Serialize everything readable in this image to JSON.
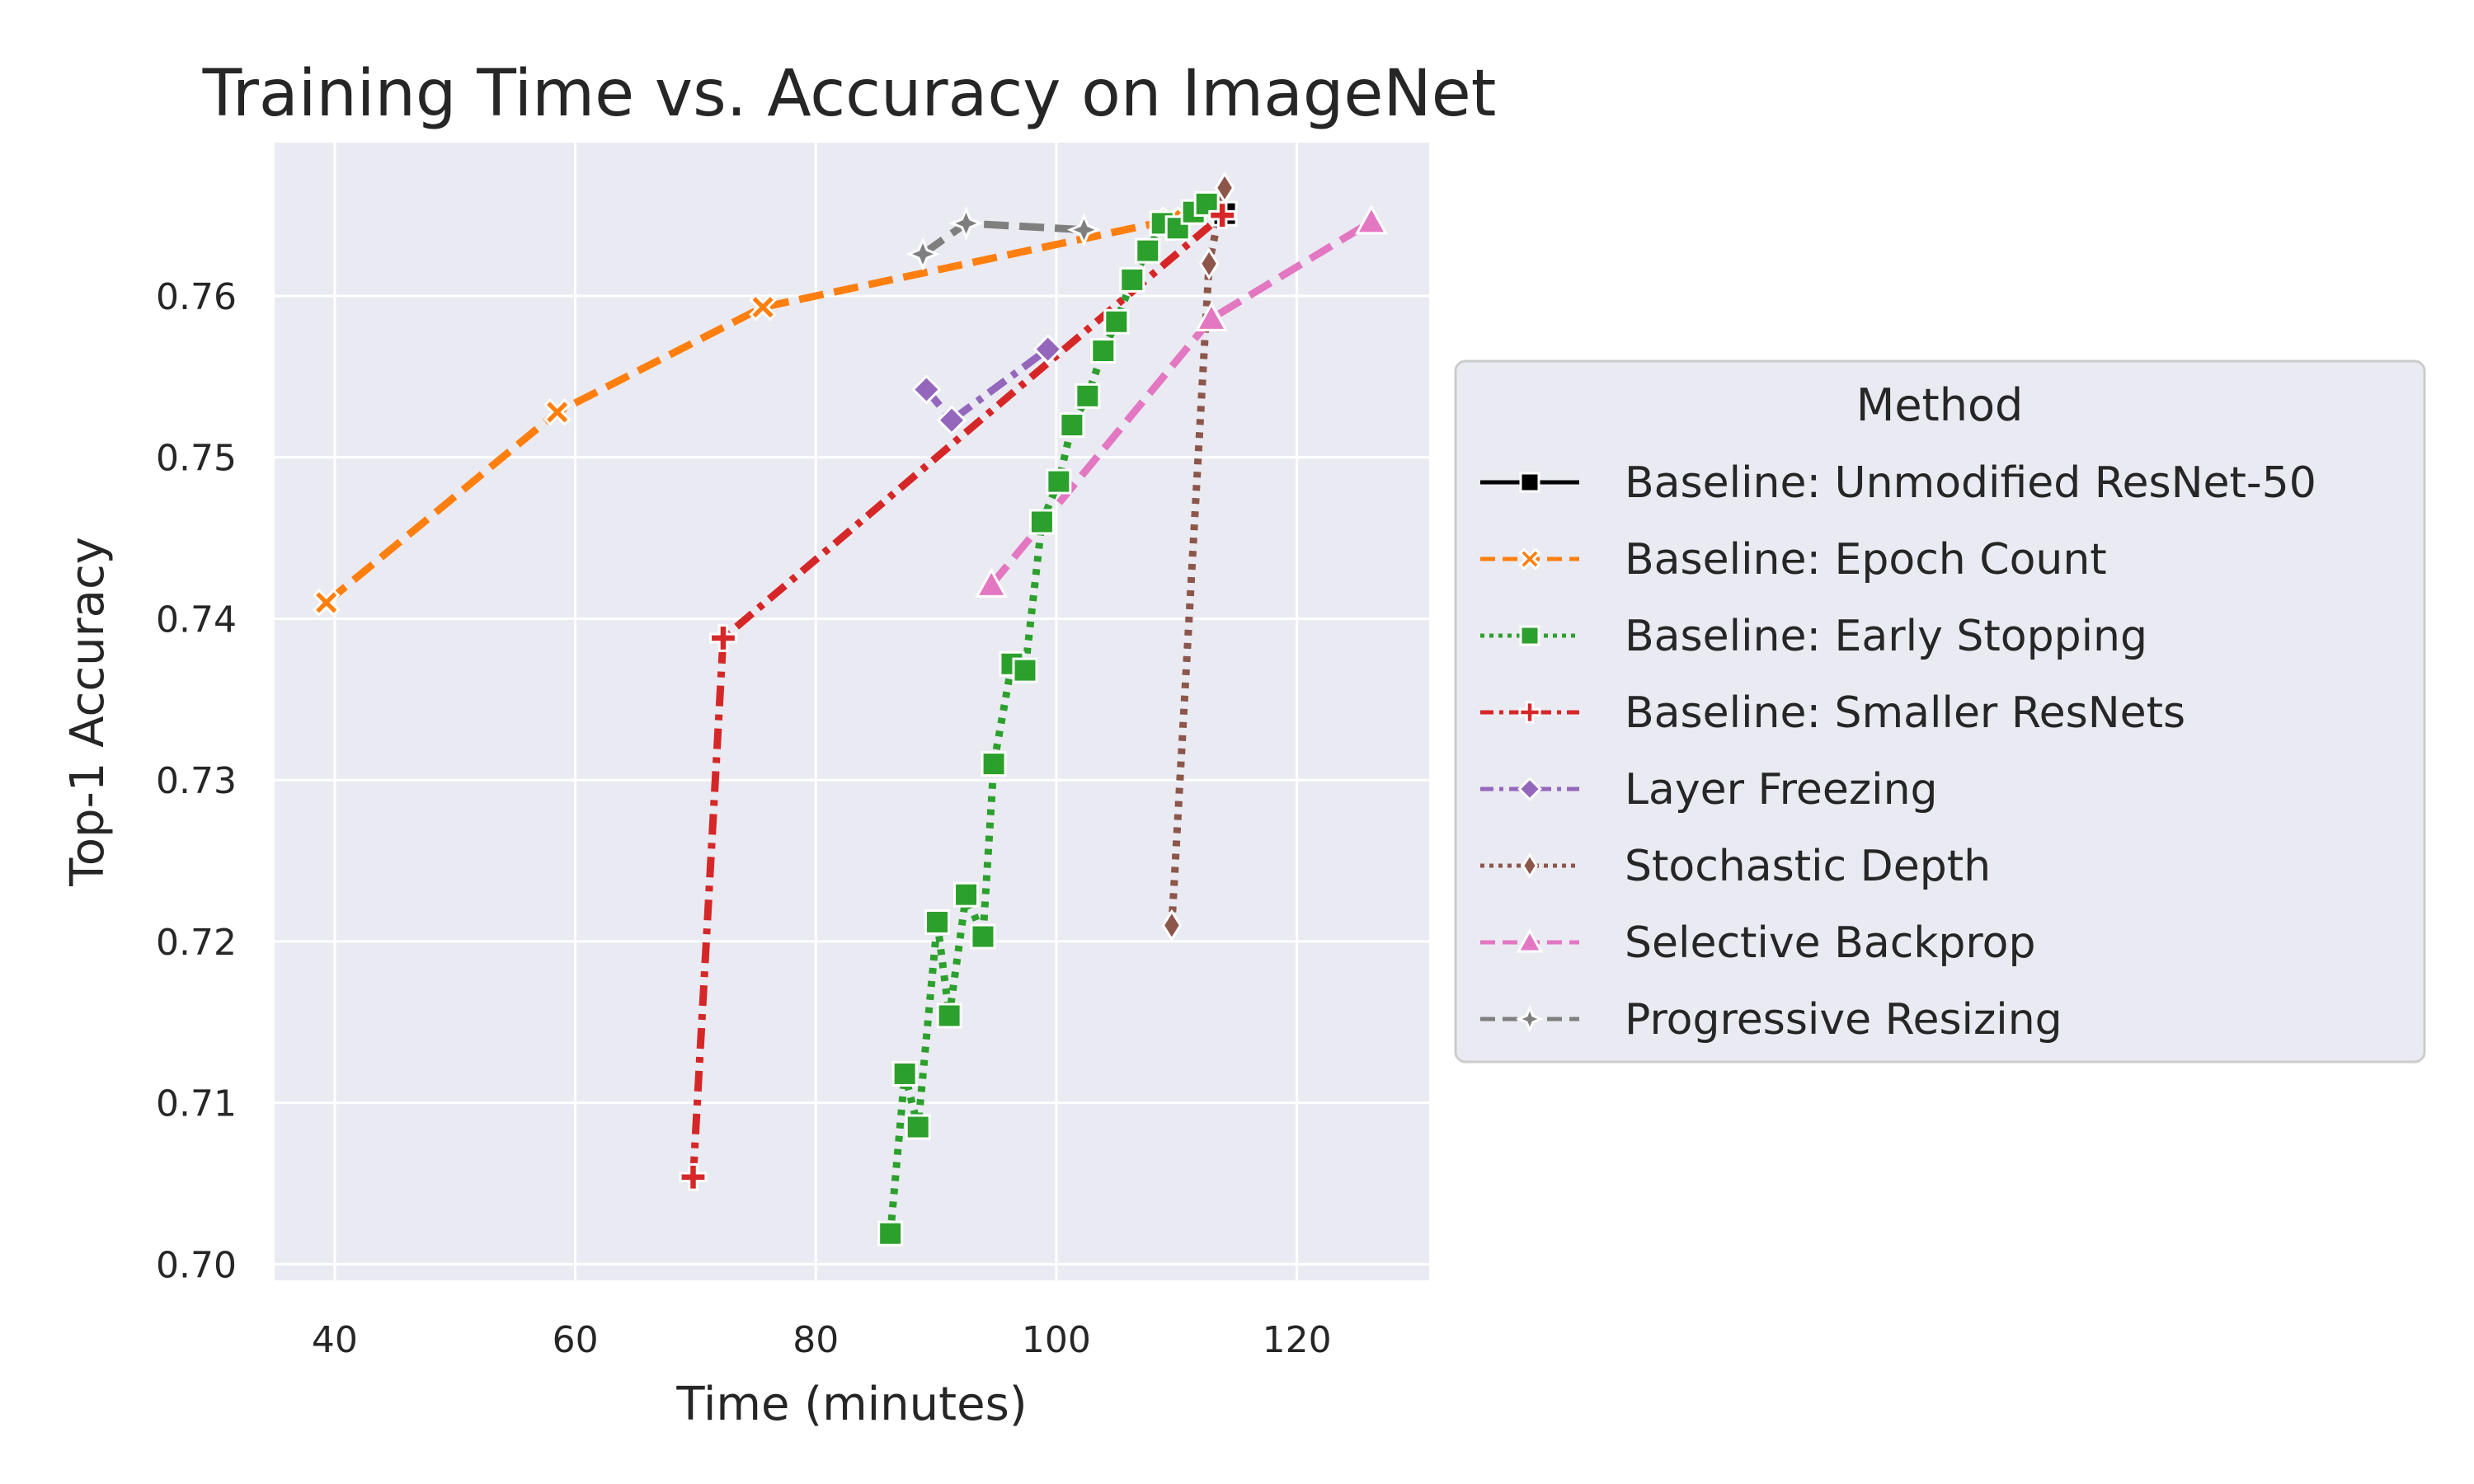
{
  "chart_data": {
    "type": "line",
    "title": "Training Time vs. Accuracy on ImageNet",
    "xlabel": "Time (minutes)",
    "ylabel": "Top-1 Accuracy",
    "xlim": [
      35,
      131
    ],
    "ylim": [
      0.699,
      0.7695
    ],
    "xticks": [
      40,
      60,
      80,
      100,
      120
    ],
    "yticks": [
      0.7,
      0.71,
      0.72,
      0.73,
      0.74,
      0.75,
      0.76
    ],
    "grid": true,
    "background": "#eaeaf2",
    "legend": {
      "title": "Method",
      "placement": "center-right-outside"
    },
    "series": [
      {
        "name": "Baseline: Unmodified ResNet-50",
        "color": "#000000",
        "dash": "solid",
        "marker": "square",
        "points": [
          [
            114.0,
            0.7651
          ]
        ]
      },
      {
        "name": "Baseline: Epoch Count",
        "color": "#ff7f0e",
        "dash": "dashed",
        "marker": "x",
        "points": [
          [
            39.3,
            0.741
          ],
          [
            58.5,
            0.7528
          ],
          [
            75.6,
            0.7593
          ],
          [
            109.5,
            0.7647
          ]
        ]
      },
      {
        "name": "Baseline: Early Stopping",
        "color": "#2ca02c",
        "dash": "dotted",
        "marker": "square",
        "points": [
          [
            86.2,
            0.7019
          ],
          [
            87.4,
            0.7118
          ],
          [
            88.5,
            0.7085
          ],
          [
            90.1,
            0.7212
          ],
          [
            91.1,
            0.7154
          ],
          [
            92.5,
            0.7229
          ],
          [
            93.9,
            0.7203
          ],
          [
            94.8,
            0.731
          ],
          [
            96.3,
            0.7372
          ],
          [
            97.4,
            0.7368
          ],
          [
            98.8,
            0.746
          ],
          [
            100.2,
            0.7485
          ],
          [
            101.3,
            0.752
          ],
          [
            102.6,
            0.7538
          ],
          [
            103.9,
            0.7566
          ],
          [
            105.0,
            0.7584
          ],
          [
            106.3,
            0.761
          ],
          [
            107.6,
            0.7628
          ],
          [
            108.8,
            0.7645
          ],
          [
            110.1,
            0.7642
          ],
          [
            111.4,
            0.7652
          ],
          [
            112.5,
            0.7657
          ]
        ]
      },
      {
        "name": "Baseline: Smaller ResNets",
        "color": "#d62728",
        "dash": "dashdot",
        "marker": "plus",
        "points": [
          [
            69.8,
            0.7054
          ],
          [
            72.3,
            0.7388
          ],
          [
            113.8,
            0.765
          ]
        ]
      },
      {
        "name": "Layer Freezing",
        "color": "#9467bd",
        "dash": "dashdot",
        "marker": "diamond",
        "points": [
          [
            89.2,
            0.7542
          ],
          [
            91.3,
            0.7523
          ],
          [
            99.3,
            0.7567
          ]
        ]
      },
      {
        "name": "Stochastic Depth",
        "color": "#8c564b",
        "dash": "dotted",
        "marker": "diamond-thin",
        "points": [
          [
            109.6,
            0.721
          ],
          [
            112.7,
            0.762
          ],
          [
            114.0,
            0.7667
          ]
        ]
      },
      {
        "name": "Selective Backprop",
        "color": "#e377c2",
        "dash": "dashed",
        "marker": "triangle",
        "points": [
          [
            94.6,
            0.7421
          ],
          [
            112.9,
            0.7586
          ],
          [
            126.2,
            0.7646
          ]
        ]
      },
      {
        "name": "Progressive Resizing",
        "color": "#7f7f7f",
        "dash": "dashed",
        "marker": "star",
        "points": [
          [
            88.9,
            0.7626
          ],
          [
            92.5,
            0.7645
          ],
          [
            102.3,
            0.7641
          ]
        ]
      }
    ]
  }
}
